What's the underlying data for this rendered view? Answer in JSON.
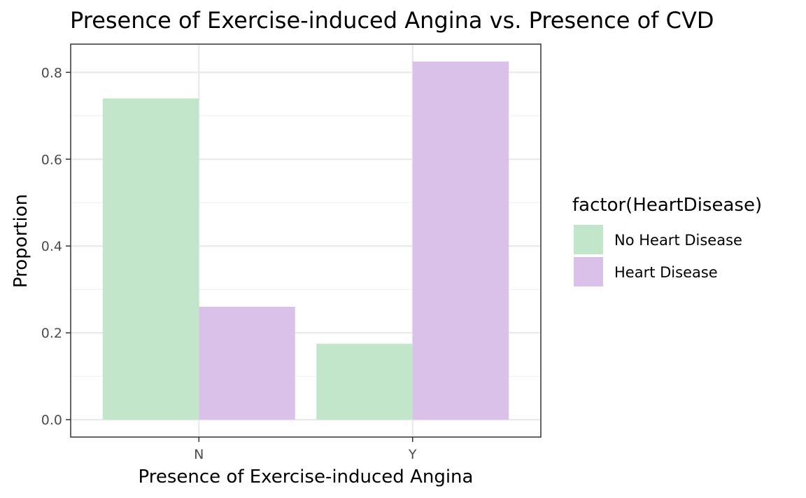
{
  "chart_data": {
    "type": "bar",
    "title": "Presence of Exercise-induced Angina vs. Presence of CVD",
    "xlabel": "Presence of Exercise-induced Angina",
    "ylabel": "Proportion",
    "categories": [
      "N",
      "Y"
    ],
    "series": [
      {
        "name": "No Heart Disease",
        "color": "#c1e6c9",
        "values": [
          0.74,
          0.175
        ]
      },
      {
        "name": "Heart Disease",
        "color": "#d9c1ea",
        "values": [
          0.26,
          0.825
        ]
      }
    ],
    "yticks": [
      0.0,
      0.2,
      0.4,
      0.6,
      0.8
    ],
    "ytick_labels": [
      "0.0",
      "0.2",
      "0.4",
      "0.6",
      "0.8"
    ],
    "ylim": [
      -0.04,
      0.865
    ],
    "grid": true,
    "legend": {
      "title": "factor(HeartDisease)",
      "position": "right"
    }
  }
}
